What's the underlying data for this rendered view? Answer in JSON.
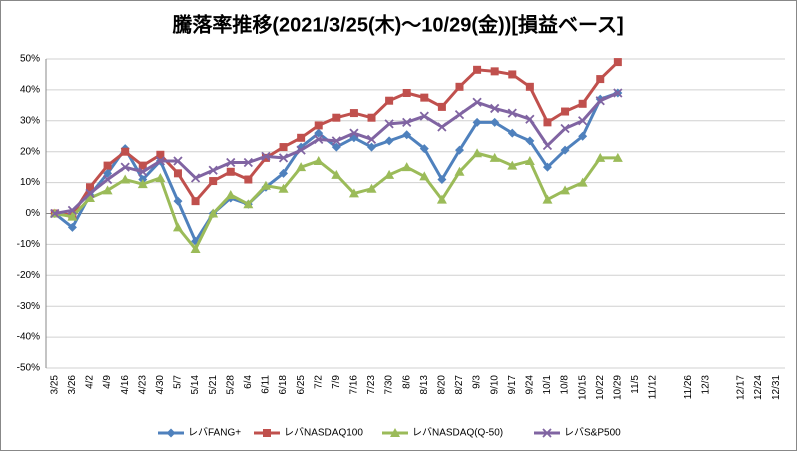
{
  "chart_data": {
    "type": "line",
    "title": "騰落率推移(2021/3/25(木)～10/29(金))[損益ベース]",
    "categories": [
      "3/25",
      "3/26",
      "4/2",
      "4/9",
      "4/16",
      "4/23",
      "4/30",
      "5/7",
      "5/14",
      "5/21",
      "5/28",
      "6/4",
      "6/11",
      "6/18",
      "6/25",
      "7/2",
      "7/9",
      "7/16",
      "7/23",
      "7/30",
      "8/6",
      "8/13",
      "8/20",
      "8/27",
      "9/3",
      "9/10",
      "9/17",
      "9/24",
      "10/1",
      "10/8",
      "10/15",
      "10/22",
      "10/29",
      "11/5",
      "11/12",
      null,
      "11/26",
      "12/3",
      null,
      "12/17",
      "12/24",
      "12/31"
    ],
    "series": [
      {
        "name": "レバFANG+",
        "color": "#4f81bd",
        "marker": "diamond",
        "values": [
          0,
          -4.5,
          6,
          13,
          21,
          11,
          17,
          4,
          -9,
          0,
          5,
          3,
          8.5,
          13,
          21.5,
          26,
          21.5,
          24.5,
          21.5,
          23.5,
          25.5,
          21,
          11,
          20.5,
          29.5,
          29.5,
          26,
          23.5,
          15,
          20.5,
          25,
          37,
          39,
          null,
          null,
          null,
          null,
          null,
          null,
          null,
          null,
          null
        ]
      },
      {
        "name": "レバNASDAQ100",
        "color": "#c0504d",
        "marker": "square",
        "values": [
          0,
          -0.5,
          8.5,
          15.5,
          20,
          15.5,
          19,
          13,
          4,
          10.5,
          13.5,
          11,
          18,
          21.5,
          24.5,
          28.5,
          31,
          32.5,
          31,
          36.5,
          39,
          37.5,
          34.5,
          41,
          46.5,
          46,
          45,
          41,
          29.5,
          33,
          35.5,
          43.5,
          49,
          null,
          null,
          null,
          null,
          null,
          null,
          null,
          null,
          null
        ]
      },
      {
        "name": "レバNASDAQ(Q-50)",
        "color": "#9bbb59",
        "marker": "triangle",
        "values": [
          0,
          -1,
          5,
          7.5,
          11,
          9.5,
          11.5,
          -4.5,
          -11.5,
          0,
          6,
          3,
          9,
          8,
          15,
          17,
          12.5,
          6.5,
          8,
          12.5,
          15,
          12,
          4.5,
          13.5,
          19.5,
          18,
          15.5,
          17,
          4.5,
          7.5,
          10,
          18,
          18,
          null,
          null,
          null,
          null,
          null,
          null,
          null,
          null,
          null
        ]
      },
      {
        "name": "レバS&P500",
        "color": "#8064a2",
        "marker": "x",
        "values": [
          0,
          1,
          6.5,
          11,
          15,
          13.5,
          17,
          17,
          11.5,
          14,
          16.5,
          16.5,
          18.5,
          18,
          20.5,
          24,
          23.5,
          26,
          24,
          29,
          29.5,
          31.5,
          28,
          32,
          36,
          34,
          32.5,
          30.5,
          22,
          27.5,
          30,
          36.5,
          39,
          null,
          null,
          null,
          null,
          null,
          null,
          null,
          null,
          null
        ]
      }
    ],
    "ylim": [
      -50,
      50
    ],
    "yticks": [
      {
        "value": -50,
        "label": "-50%"
      },
      {
        "value": -40,
        "label": "-40%"
      },
      {
        "value": -30,
        "label": "-30%"
      },
      {
        "value": -20,
        "label": "-20%"
      },
      {
        "value": -10,
        "label": "-10%"
      },
      {
        "value": 0,
        "label": "0%"
      },
      {
        "value": 10,
        "label": "10%"
      },
      {
        "value": 20,
        "label": "20%"
      },
      {
        "value": 30,
        "label": "30%"
      },
      {
        "value": 40,
        "label": "40%"
      },
      {
        "value": 50,
        "label": "50%"
      }
    ],
    "grid": true,
    "legend": "bottom"
  }
}
